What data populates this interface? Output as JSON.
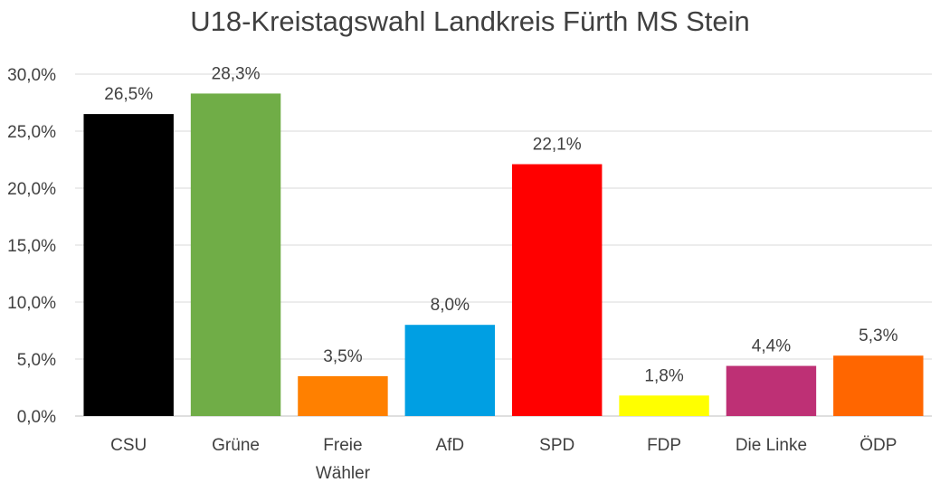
{
  "chart_data": {
    "type": "bar",
    "title": "U18-Kreistagswahl Landkreis Fürth MS Stein",
    "xlabel": "",
    "ylabel": "",
    "ylim": [
      0,
      30
    ],
    "yticks": [
      "0,0%",
      "5,0%",
      "10,0%",
      "15,0%",
      "20,0%",
      "25,0%",
      "30,0%"
    ],
    "ytick_values": [
      0,
      5,
      10,
      15,
      20,
      25,
      30
    ],
    "grid": true,
    "legend": "none",
    "categories": [
      [
        "CSU"
      ],
      [
        "Grüne"
      ],
      [
        "Freie",
        "Wähler"
      ],
      [
        "AfD"
      ],
      [
        "SPD"
      ],
      [
        "FDP"
      ],
      [
        "Die Linke"
      ],
      [
        "ÖDP"
      ]
    ],
    "values": [
      26.5,
      28.3,
      3.5,
      8.0,
      22.1,
      1.8,
      4.4,
      5.3
    ],
    "data_labels": [
      "26,5%",
      "28,3%",
      "3,5%",
      "8,0%",
      "22,1%",
      "1,8%",
      "4,4%",
      "5,3%"
    ],
    "colors": [
      "#000000",
      "#70AD47",
      "#FF8000",
      "#009FE3",
      "#FF0000",
      "#FFFF00",
      "#BE3075",
      "#FF6600"
    ]
  }
}
